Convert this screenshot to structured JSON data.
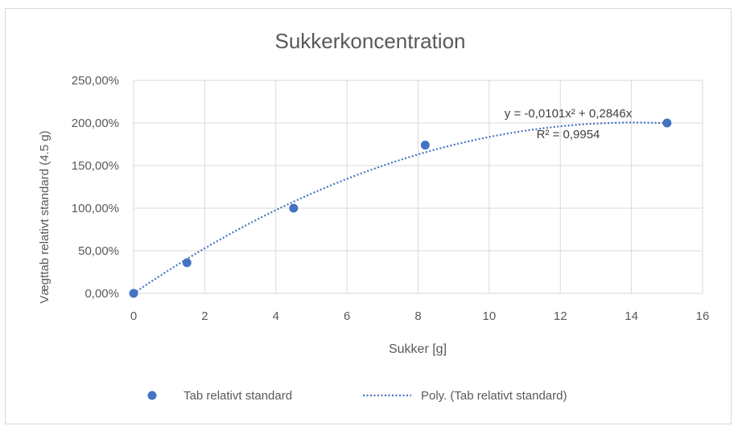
{
  "chart_data": {
    "type": "scatter",
    "title": "Sukkerkoncentration",
    "xlabel": "Sukker [g]",
    "ylabel": "Vægttab relativt standard (4.5 g)",
    "xlim": [
      0,
      16
    ],
    "ylim": [
      0,
      2.5
    ],
    "x_ticks": [
      0,
      2,
      4,
      6,
      8,
      10,
      12,
      14,
      16
    ],
    "x_tick_labels": [
      "0",
      "2",
      "4",
      "6",
      "8",
      "10",
      "12",
      "14",
      "16"
    ],
    "y_ticks": [
      0,
      0.5,
      1.0,
      1.5,
      2.0,
      2.5
    ],
    "y_tick_labels": [
      "0,00%",
      "50,00%",
      "100,00%",
      "150,00%",
      "200,00%",
      "250,00%"
    ],
    "grid": true,
    "legend_position": "bottom",
    "series": [
      {
        "name": "Tab relativt standard",
        "kind": "scatter",
        "color": "#4472c4",
        "points": [
          {
            "x": 0,
            "y": 0.0
          },
          {
            "x": 1.5,
            "y": 0.36
          },
          {
            "x": 4.5,
            "y": 1.0
          },
          {
            "x": 8.2,
            "y": 1.74
          },
          {
            "x": 15,
            "y": 2.0
          }
        ]
      },
      {
        "name": "Poly. (Tab relativt standard)",
        "kind": "trendline-dotted",
        "color": "#4472c4",
        "coefficients": {
          "a": -0.0101,
          "b": 0.2846,
          "c": 0
        }
      }
    ],
    "annotations": {
      "equation": "y = -0,0101x² + 0,2846x",
      "r_squared": "R² = 0,9954"
    }
  }
}
